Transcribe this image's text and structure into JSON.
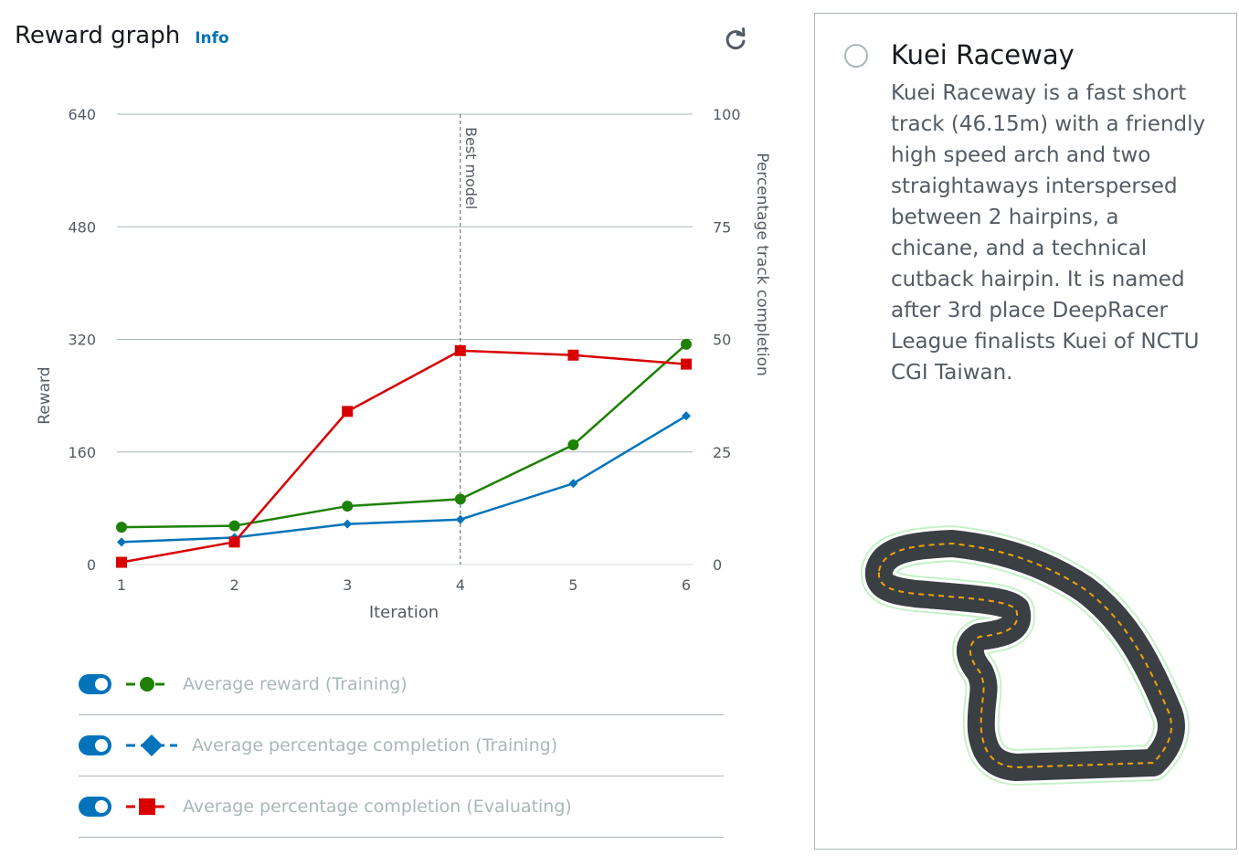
{
  "header": {
    "title": "Reward graph",
    "info_label": "Info"
  },
  "refresh": {
    "icon": "refresh-icon"
  },
  "chart_data": {
    "type": "line",
    "xlabel": "Iteration",
    "ylabel_left": "Reward",
    "ylabel_right": "Percentage track completion",
    "x": [
      1,
      2,
      3,
      4,
      5,
      6
    ],
    "ylim_left": [
      0,
      640
    ],
    "ylim_right": [
      0,
      100
    ],
    "left_ticks": [
      0,
      160,
      320,
      480,
      640
    ],
    "right_ticks": [
      0,
      25,
      50,
      75,
      100
    ],
    "grid": true,
    "marker_line": {
      "x": 4,
      "label": "Best model"
    },
    "series": [
      {
        "name": "Average reward (Training)",
        "axis": "left",
        "color": "#1d8102",
        "marker": "circle",
        "values": [
          53,
          55,
          83,
          93,
          170,
          313
        ]
      },
      {
        "name": "Average percentage completion (Training)",
        "axis": "right",
        "color": "#0073bb",
        "marker": "diamond",
        "values": [
          5,
          6,
          9,
          10,
          18,
          33
        ]
      },
      {
        "name": "Average percentage completion (Evaluating)",
        "axis": "right",
        "color": "#d80000",
        "marker": "square",
        "values": [
          0.5,
          5,
          34,
          47.5,
          46.5,
          44.5
        ]
      }
    ]
  },
  "legend": {
    "items": [
      {
        "label": "Average reward (Training)",
        "enabled": true
      },
      {
        "label": "Average percentage completion (Training)",
        "enabled": true
      },
      {
        "label": "Average percentage completion (Evaluating)",
        "enabled": true
      }
    ]
  },
  "track": {
    "name": "Kuei Raceway",
    "description": "Kuei Raceway is a fast short track (46.15m) with a friendly high speed arch and two straightaways interspersed between 2 hairpins, a chicane, and a technical cutback hairpin. It is named after 3rd place DeepRacer League finalists Kuei of NCTU CGI Taiwan.",
    "selected": false,
    "colors": {
      "track": "#3a3f44",
      "center_line": "#f0a30a",
      "edge": "#c6f1c8"
    }
  }
}
